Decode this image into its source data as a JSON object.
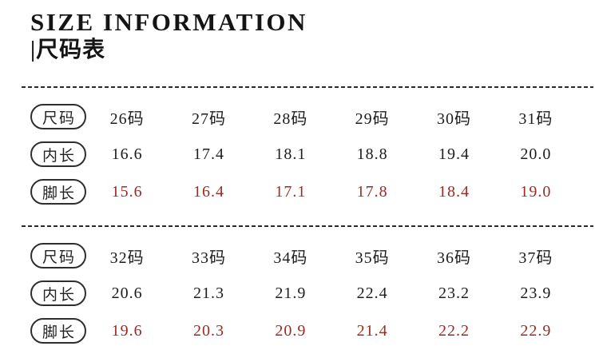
{
  "header": {
    "title": "SIZE INFORMATION",
    "subtitle": "|尺码表"
  },
  "colors": {
    "text": "#1c1c1c",
    "foot_length_red": "#9e2923",
    "pill_border": "#2e2e2e",
    "divider": "#2b2b2b",
    "background": "#ffffff"
  },
  "table": {
    "row_labels": {
      "size": "尺码",
      "inner_length": "内长",
      "foot_length": "脚长"
    },
    "sections": [
      {
        "sizes": [
          "26码",
          "27码",
          "28码",
          "29码",
          "30码",
          "31码"
        ],
        "inner_length": [
          "16.6",
          "17.4",
          "18.1",
          "18.8",
          "19.4",
          "20.0"
        ],
        "foot_length": [
          "15.6",
          "16.4",
          "17.1",
          "17.8",
          "18.4",
          "19.0"
        ]
      },
      {
        "sizes": [
          "32码",
          "33码",
          "34码",
          "35码",
          "36码",
          "37码"
        ],
        "inner_length": [
          "20.6",
          "21.3",
          "21.9",
          "22.4",
          "23.2",
          "23.9"
        ],
        "foot_length": [
          "19.6",
          "20.3",
          "20.9",
          "21.4",
          "22.2",
          "22.9"
        ]
      }
    ]
  }
}
